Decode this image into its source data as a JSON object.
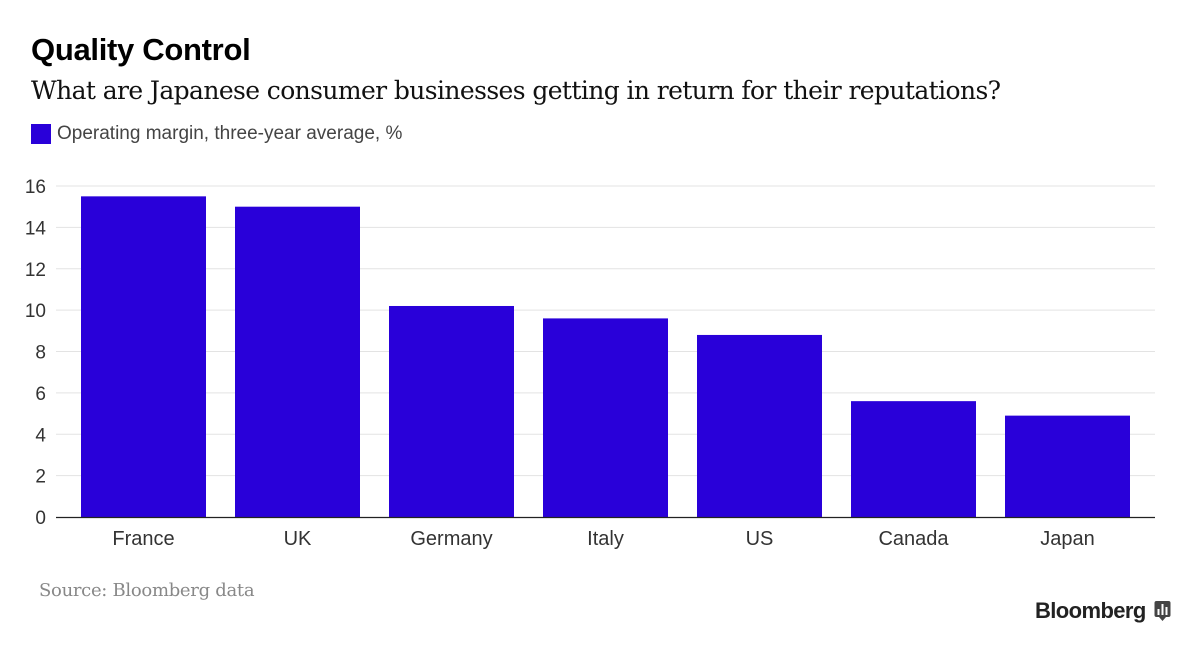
{
  "header": {
    "title": "Quality Control",
    "subtitle": "What are Japanese consumer businesses getting in return for their reputations?"
  },
  "legend": {
    "label": "Operating margin, three-year average, %",
    "color": "#2900d9"
  },
  "footer": {
    "source": "Source: Bloomberg data",
    "brand": "Bloomberg",
    "brand_icon": "bloomberg-terminal-icon"
  },
  "chart_data": {
    "type": "bar",
    "categories": [
      "France",
      "UK",
      "Germany",
      "Italy",
      "US",
      "Canada",
      "Japan"
    ],
    "series": [
      {
        "name": "Operating margin, three-year average, %",
        "values": [
          15.5,
          15.0,
          10.2,
          9.6,
          8.8,
          5.6,
          4.9
        ],
        "color": "#2900d9"
      }
    ],
    "ylim": [
      0,
      16
    ],
    "yticks": [
      0,
      2,
      4,
      6,
      8,
      10,
      12,
      14,
      16
    ],
    "xlabel": "",
    "ylabel": "",
    "grid": true,
    "legend_position": "top-left"
  }
}
